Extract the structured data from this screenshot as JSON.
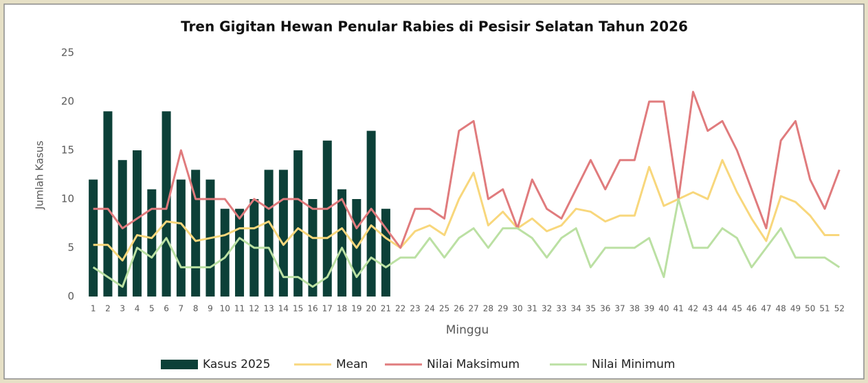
{
  "chart_data": {
    "type": "bar-line",
    "title": "Tren Gigitan Hewan Penular Rabies di Pesisir Selatan Tahun 2026",
    "x_label": "Minggu",
    "y_label": "Jumlah Kasus",
    "categories": [
      "1",
      "2",
      "3",
      "4",
      "5",
      "6",
      "7",
      "8",
      "9",
      "10",
      "11",
      "12",
      "13",
      "14",
      "15",
      "16",
      "17",
      "18",
      "19",
      "20",
      "21",
      "22",
      "23",
      "24",
      "25",
      "26",
      "27",
      "28",
      "29",
      "30",
      "31",
      "32",
      "33",
      "34",
      "35",
      "36",
      "37",
      "38",
      "39",
      "40",
      "41",
      "42",
      "43",
      "44",
      "45",
      "46",
      "47",
      "48",
      "49",
      "50",
      "51",
      "52"
    ],
    "ylim": [
      0,
      25
    ],
    "yticks": [
      0,
      5,
      10,
      15,
      20,
      25
    ],
    "grid": false,
    "legend": "bottom",
    "series": [
      {
        "name": "Kasus 2025",
        "type": "bar",
        "color": "#0c4038",
        "values": [
          12,
          19,
          14,
          15,
          11,
          19,
          12,
          13,
          12,
          9,
          9,
          10,
          13,
          13,
          15,
          10,
          16,
          11,
          10,
          17,
          9,
          null,
          null,
          null,
          null,
          null,
          null,
          null,
          null,
          null,
          null,
          null,
          null,
          null,
          null,
          null,
          null,
          null,
          null,
          null,
          null,
          null,
          null,
          null,
          null,
          null,
          null,
          null,
          null,
          null,
          null,
          null
        ]
      },
      {
        "name": "Mean",
        "type": "line",
        "color": "#f8d77c",
        "values": [
          5.3,
          5.3,
          3.7,
          6.3,
          6,
          7.7,
          7.5,
          5.7,
          6,
          6.3,
          7,
          7,
          7.7,
          5.3,
          7,
          6,
          6,
          7,
          5,
          7.3,
          6,
          5,
          6.7,
          7.3,
          6.3,
          10,
          12.7,
          7.3,
          8.7,
          7,
          8,
          6.7,
          7.3,
          9,
          8.7,
          7.7,
          8.3,
          8.3,
          13.3,
          9.3,
          10,
          10.7,
          10,
          14,
          10.7,
          8,
          5.7,
          10.3,
          9.7,
          8.3,
          6.3,
          6.3
        ]
      },
      {
        "name": "Nilai Maksimum",
        "type": "line",
        "color": "#e07b7d",
        "values": [
          9,
          9,
          7,
          8,
          9,
          9,
          15,
          10,
          10,
          10,
          8,
          10,
          9,
          10,
          10,
          9,
          9,
          10,
          7,
          9,
          7,
          5,
          9,
          9,
          8,
          17,
          18,
          10,
          11,
          7,
          12,
          9,
          8,
          11,
          14,
          11,
          14,
          14,
          20,
          20,
          10,
          21,
          17,
          18,
          15,
          11,
          7,
          16,
          18,
          12,
          9,
          13
        ]
      },
      {
        "name": "Nilai Minimum",
        "type": "line",
        "color": "#bbe0a3",
        "values": [
          3,
          2,
          1,
          5,
          4,
          6,
          3,
          3,
          3,
          4,
          6,
          5,
          5,
          2,
          2,
          1,
          2,
          5,
          2,
          4,
          3,
          4,
          4,
          6,
          4,
          6,
          7,
          5,
          7,
          7,
          6,
          4,
          6,
          7,
          3,
          5,
          5,
          5,
          6,
          2,
          10,
          5,
          5,
          7,
          6,
          3,
          5,
          7,
          4,
          4,
          4,
          3
        ]
      }
    ]
  }
}
